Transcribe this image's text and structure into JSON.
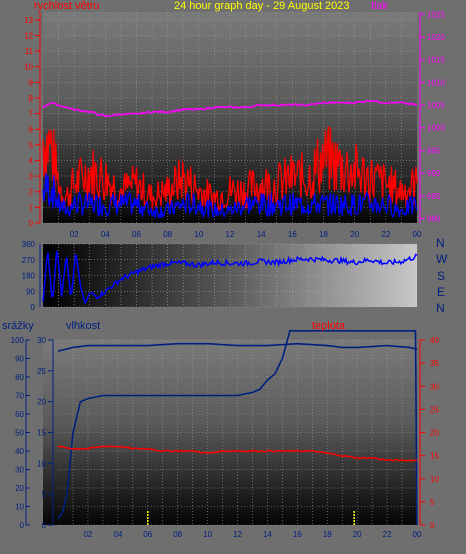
{
  "header": {
    "wind_label": "rychlost větru",
    "title": "24 hour graph day - 29 August 2023",
    "pressure_label": "tlak"
  },
  "direction_letters": [
    "N",
    "W",
    "S",
    "E",
    "N"
  ],
  "bottom_header": {
    "rain_label": "srážky",
    "humidity_label": "vlhkost",
    "temp_label": "teplota"
  },
  "colors": {
    "wind": "#ff0000",
    "gust": "#ff0000",
    "wind_dir": "#0000ff",
    "pressure": "#ff00ff",
    "humidity": "#002080",
    "rain": "#002080",
    "temp": "#ff0000",
    "rain_marks": "#ffff00"
  },
  "chart_data": [
    {
      "type": "line",
      "x_ticks": [
        "02",
        "04",
        "06",
        "08",
        "10",
        "12",
        "14",
        "16",
        "18",
        "20",
        "22",
        "00"
      ],
      "y_left_ticks": [
        0,
        1,
        2,
        3,
        4,
        5,
        6,
        7,
        8,
        9,
        10,
        11,
        12,
        13
      ],
      "y_left_range": [
        0,
        13.5
      ],
      "y_right_ticks": [
        980,
        985,
        990,
        995,
        1000,
        1005,
        1010,
        1015,
        1020,
        1025
      ],
      "y_right_range": [
        979,
        1025.5
      ],
      "series": [
        {
          "role": "gust",
          "axis": "left",
          "hours": [
            0.0,
            0.5,
            1.0,
            1.5,
            2.0,
            3.0,
            4.0,
            5.0,
            6.0,
            7.0,
            8.0,
            9.0,
            10.0,
            11.0,
            12.0,
            13.0,
            14.0,
            15.0,
            16.0,
            17.0,
            18.0,
            19.0,
            20.0,
            21.0,
            22.0,
            23.0,
            24.0
          ],
          "values": [
            6.5,
            6.0,
            3.0,
            2.0,
            3.0,
            4.0,
            3.5,
            2.5,
            3.0,
            2.0,
            2.5,
            3.5,
            2.5,
            2.0,
            2.5,
            2.5,
            3.0,
            3.0,
            3.5,
            3.5,
            5.0,
            4.5,
            4.0,
            3.5,
            3.0,
            2.5,
            3.0
          ]
        },
        {
          "role": "wind",
          "axis": "left",
          "hours": [
            0.0,
            0.5,
            1.0,
            1.5,
            2.0,
            3.0,
            4.0,
            5.0,
            6.0,
            7.0,
            8.0,
            9.0,
            10.0,
            11.0,
            12.0,
            13.0,
            14.0,
            15.0,
            16.0,
            17.0,
            18.0,
            19.0,
            20.0,
            21.0,
            22.0,
            23.0,
            24.0
          ],
          "values": [
            2.5,
            3.0,
            1.5,
            1.0,
            1.5,
            1.5,
            1.5,
            1.5,
            1.5,
            1.0,
            1.0,
            1.5,
            1.5,
            1.0,
            1.0,
            1.5,
            1.5,
            1.5,
            1.5,
            1.5,
            1.5,
            1.5,
            1.5,
            1.5,
            1.5,
            1.0,
            1.5
          ]
        },
        {
          "role": "pressure",
          "axis": "right",
          "hours": [
            0.0,
            0.5,
            1.0,
            2.0,
            3.0,
            4.0,
            5.0,
            6.0,
            7.0,
            8.0,
            9.0,
            10.0,
            11.0,
            12.0,
            13.0,
            14.0,
            15.0,
            16.0,
            17.0,
            18.0,
            19.0,
            20.0,
            21.0,
            22.0,
            23.0,
            24.0
          ],
          "values": [
            1004.5,
            1005.5,
            1005.0,
            1004.0,
            1003.5,
            1002.5,
            1003.0,
            1003.0,
            1003.5,
            1003.5,
            1004.0,
            1004.0,
            1004.5,
            1004.5,
            1004.5,
            1005.0,
            1005.0,
            1005.0,
            1005.0,
            1005.5,
            1005.5,
            1005.5,
            1006.0,
            1005.5,
            1005.5,
            1005.0
          ]
        }
      ]
    },
    {
      "type": "line",
      "x_ticks": [
        "02",
        "04",
        "06",
        "08",
        "10",
        "12",
        "14",
        "16",
        "18",
        "20",
        "22",
        "00"
      ],
      "y_ticks": [
        0,
        90,
        180,
        270,
        360
      ],
      "y_range": [
        0,
        360
      ],
      "series": [
        {
          "role": "wind_dir",
          "hours": [
            0.0,
            0.3,
            0.6,
            0.9,
            1.2,
            1.5,
            1.8,
            2.1,
            2.4,
            2.7,
            3.0,
            3.5,
            4.0,
            5.0,
            6.0,
            7.0,
            8.0,
            9.0,
            10.0,
            11.0,
            12.0,
            13.0,
            14.0,
            15.0,
            16.0,
            17.0,
            18.0,
            19.0,
            20.0,
            21.0,
            22.0,
            23.0,
            24.0
          ],
          "values": [
            30,
            330,
            20,
            340,
            60,
            300,
            40,
            320,
            120,
            20,
            80,
            60,
            90,
            160,
            200,
            230,
            250,
            250,
            240,
            255,
            250,
            250,
            260,
            255,
            270,
            275,
            270,
            265,
            255,
            270,
            250,
            260,
            290
          ]
        }
      ]
    },
    {
      "type": "line",
      "x_ticks": [
        "02",
        "04",
        "06",
        "08",
        "10",
        "12",
        "14",
        "16",
        "18",
        "20",
        "22",
        "00"
      ],
      "y_humidity_ticks": [
        0,
        10,
        20,
        30,
        40,
        50,
        60,
        70,
        80,
        90,
        100
      ],
      "y_rain_ticks": [
        0,
        5,
        10,
        15,
        20,
        25,
        30
      ],
      "y_rain_range": [
        0,
        30
      ],
      "y_temp_ticks": [
        0,
        5,
        10,
        15,
        20,
        25,
        30,
        35,
        40
      ],
      "y_temp_range": [
        0,
        40
      ],
      "series": [
        {
          "role": "humidity",
          "axis": "humidity",
          "hours": [
            0.0,
            0.5,
            1.0,
            2.0,
            4.0,
            6.0,
            8.0,
            10.0,
            12.0,
            14.0,
            16.0,
            18.0,
            19.0,
            20.0,
            22.0,
            23.5,
            24.0
          ],
          "values": [
            94,
            95,
            96,
            97,
            97,
            97,
            98,
            98,
            97,
            97,
            98,
            97,
            96,
            96,
            97,
            96,
            95
          ]
        },
        {
          "role": "rain",
          "axis": "rain",
          "hours": [
            0.0,
            0.3,
            0.6,
            1.0,
            1.5,
            2.0,
            3.0,
            4.0,
            6.0,
            8.0,
            10.0,
            12.0,
            13.0,
            13.5,
            14.0,
            14.5,
            15.0,
            15.5,
            16.0,
            18.0,
            20.0,
            22.0,
            23.9,
            24.0
          ],
          "values": [
            1.0,
            2.0,
            5.0,
            15.0,
            20.0,
            20.5,
            21.0,
            21.0,
            21.0,
            21.0,
            21.0,
            21.0,
            21.5,
            22.0,
            23.5,
            24.5,
            27.0,
            31.5,
            31.5,
            31.5,
            31.5,
            31.5,
            31.5,
            0.0
          ]
        },
        {
          "role": "temp",
          "axis": "temp",
          "hours": [
            0.0,
            1.0,
            2.0,
            3.0,
            4.0,
            5.0,
            6.0,
            7.0,
            8.0,
            9.0,
            10.0,
            11.0,
            12.0,
            13.0,
            14.0,
            15.0,
            16.0,
            17.0,
            18.0,
            19.0,
            20.0,
            21.0,
            22.0,
            23.0,
            24.0
          ],
          "values": [
            17.0,
            16.5,
            16.5,
            17.0,
            17.0,
            16.5,
            16.5,
            16.0,
            16.0,
            16.0,
            15.5,
            16.0,
            16.0,
            16.0,
            16.0,
            16.0,
            16.0,
            16.0,
            15.5,
            15.0,
            14.5,
            14.5,
            14.0,
            14.0,
            14.0
          ]
        },
        {
          "role": "rain_marks",
          "hours": [
            6.0,
            19.8
          ],
          "values": [
            0.5,
            0.5
          ]
        }
      ]
    }
  ]
}
